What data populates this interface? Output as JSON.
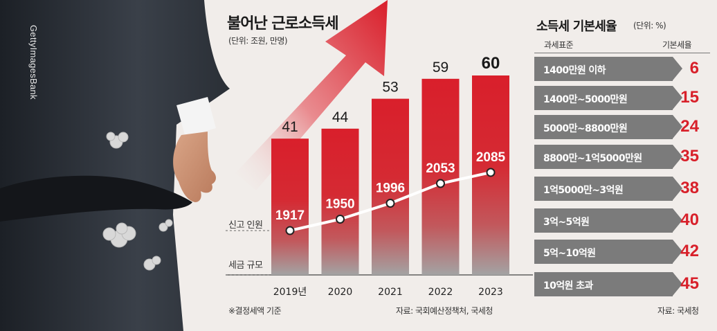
{
  "watermark": "GettyImagesBank",
  "left": {
    "title": "불어난 근로소득세",
    "unit": "(단위: 조원, 만명)",
    "series_labels": {
      "filers": "신고 인원",
      "tax": "세금 규모"
    },
    "footnote": "※결정세액 기준",
    "source": "자료: 국회예산정책처, 국세청"
  },
  "chart_data": {
    "type": "bar",
    "title": "불어난 근로소득세",
    "categories": [
      "2019년",
      "2020",
      "2021",
      "2022",
      "2023"
    ],
    "series": [
      {
        "name": "세금 규모",
        "unit": "조원",
        "type": "bar",
        "values": [
          41,
          44,
          53,
          59,
          60
        ]
      },
      {
        "name": "신고 인원",
        "unit": "만명",
        "type": "line",
        "values": [
          1917,
          1950,
          1996,
          2053,
          2085
        ]
      }
    ]
  },
  "right": {
    "title": "소득세 기본세율",
    "unit": "(단위: %)",
    "col1": "과세표준",
    "col2": "기본세율",
    "rows": [
      {
        "bracket": "1400만원 이하",
        "rate": "6"
      },
      {
        "bracket": "1400만~5000만원",
        "rate": "15"
      },
      {
        "bracket": "5000만~8800만원",
        "rate": "24"
      },
      {
        "bracket": "8800만~1억5000만원",
        "rate": "35"
      },
      {
        "bracket": "1억5000만~3억원",
        "rate": "38"
      },
      {
        "bracket": "3억~5억원",
        "rate": "40"
      },
      {
        "bracket": "5억~10억원",
        "rate": "42"
      },
      {
        "bracket": "10억원 초과",
        "rate": "45"
      }
    ],
    "source": "자료: 국세청"
  },
  "colors": {
    "bar_top": "#d91f2b",
    "bar_bottom": "#9a9a9a",
    "band": "#7b7b7b",
    "rate": "#d8202a"
  }
}
